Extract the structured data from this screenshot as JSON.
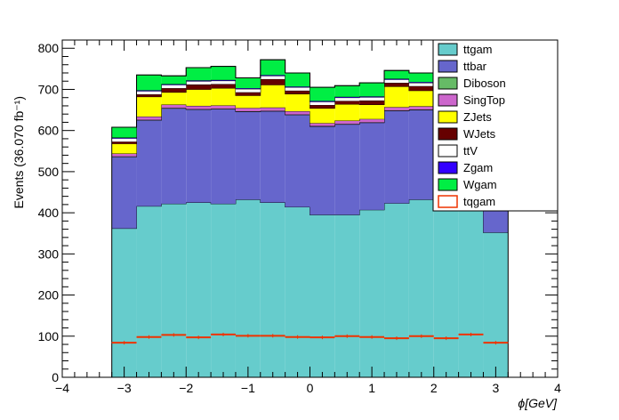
{
  "chart_data": {
    "type": "bar",
    "stacked": true,
    "xlabel": "ϕ[GeV]",
    "ylabel": "Events (36.070 fb⁻¹)",
    "xlim": [
      -4,
      4
    ],
    "ylim": [
      0,
      820
    ],
    "x_ticks": [
      -4,
      -3,
      -2,
      -1,
      0,
      1,
      2,
      3,
      4
    ],
    "y_ticks": [
      0,
      100,
      200,
      300,
      400,
      500,
      600,
      700,
      800
    ],
    "bin_edges": [
      -3.2,
      -2.8,
      -2.4,
      -2.0,
      -1.6,
      -1.2,
      -0.8,
      -0.4,
      0.0,
      0.4,
      0.8,
      1.2,
      1.6,
      2.0,
      2.4,
      2.8,
      3.2
    ],
    "legend_position": "top-right",
    "series": [
      {
        "name": "ttgam",
        "color": "#66cccc",
        "values": [
          362,
          416,
          422,
          425,
          422,
          432,
          425,
          414,
          395,
          395,
          407,
          423,
          432,
          426,
          410,
          352
        ]
      },
      {
        "name": "ttbar",
        "color": "#6666cc",
        "values": [
          174,
          209,
          232,
          226,
          230,
          214,
          222,
          224,
          215,
          220,
          212,
          225,
          218,
          226,
          216,
          182
        ]
      },
      {
        "name": "Diboson",
        "color": "#66bb66",
        "values": [
          1,
          1,
          1,
          1,
          1,
          1,
          1,
          1,
          1,
          1,
          1,
          1,
          1,
          1,
          1,
          1
        ]
      },
      {
        "name": "SingTop",
        "color": "#cc66cc",
        "values": [
          7,
          8,
          8,
          8,
          8,
          8,
          8,
          8,
          7,
          8,
          8,
          8,
          8,
          8,
          8,
          7
        ]
      },
      {
        "name": "ZJets",
        "color": "#ffff00",
        "values": [
          24,
          48,
          30,
          40,
          42,
          30,
          55,
          42,
          36,
          40,
          35,
          50,
          38,
          42,
          40,
          25
        ]
      },
      {
        "name": "WJets",
        "color": "#660000",
        "values": [
          5,
          6,
          10,
          12,
          10,
          8,
          14,
          8,
          8,
          8,
          10,
          9,
          11,
          10,
          10,
          6
        ]
      },
      {
        "name": "ttV",
        "color": "#ffffff",
        "values": [
          8,
          8,
          8,
          8,
          8,
          8,
          8,
          8,
          8,
          8,
          8,
          8,
          8,
          8,
          8,
          8
        ]
      },
      {
        "name": "Zgam",
        "color": "#3300ff",
        "values": [
          2,
          2,
          2,
          2,
          2,
          2,
          2,
          2,
          2,
          2,
          2,
          2,
          2,
          2,
          2,
          2
        ]
      },
      {
        "name": "Wgam",
        "color": "#00ee44",
        "values": [
          25,
          37,
          20,
          31,
          33,
          25,
          37,
          33,
          33,
          27,
          33,
          20,
          22,
          26,
          24,
          15
        ]
      }
    ],
    "overlay": {
      "name": "tqgam",
      "color": "#ee3300",
      "values": [
        84,
        98,
        103,
        97,
        104,
        101,
        101,
        98,
        97,
        100,
        98,
        95,
        100,
        95,
        104,
        84
      ]
    }
  }
}
